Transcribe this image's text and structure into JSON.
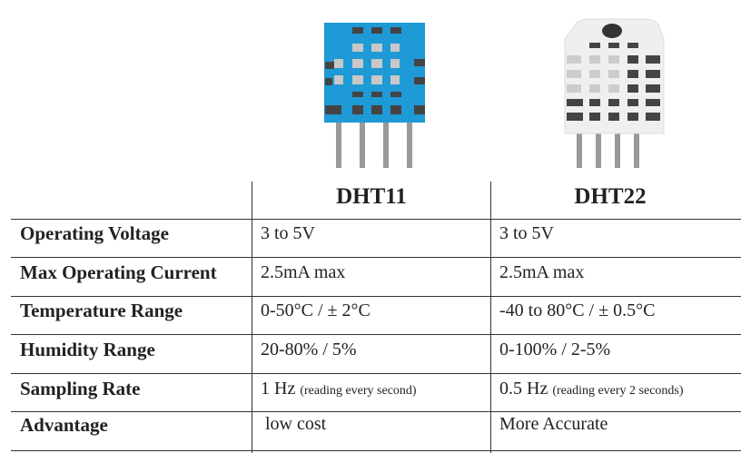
{
  "columns": [
    "",
    "DHT11",
    "DHT22"
  ],
  "rows": [
    {
      "label": "Operating Voltage",
      "dht11": "3 to 5V",
      "dht22": "3 to 5V"
    },
    {
      "label": "Max Operating Current",
      "dht11": "2.5mA max",
      "dht22": "2.5mA max"
    },
    {
      "label": "Temperature Range",
      "dht11": "0-50°C / ± 2°C",
      "dht22": "-40 to 80°C / ± 0.5°C"
    },
    {
      "label": "Humidity Range",
      "dht11": "20-80% / 5%",
      "dht22": "0-100% / 2-5%"
    },
    {
      "label": "Sampling Rate",
      "dht11": "1 Hz",
      "dht11_note": "(reading every second)",
      "dht22": "0.5 Hz",
      "dht22_note": "(reading every 2 seconds)"
    },
    {
      "label": "Advantage",
      "dht11": " low cost",
      "dht22": "More Accurate"
    }
  ],
  "colors": {
    "dht11_body": "#1e9ad6",
    "dht22_body": "#efefef",
    "grille": "#444444",
    "pins": "#999999"
  }
}
